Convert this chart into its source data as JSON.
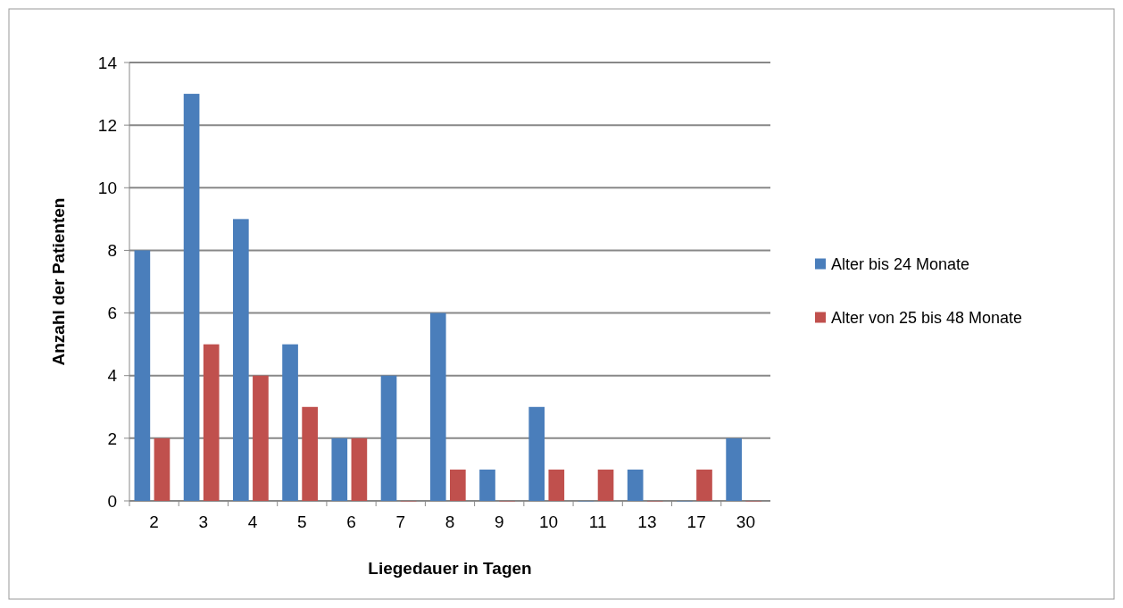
{
  "chart_data": {
    "type": "bar",
    "xlabel": "Liegedauer in Tagen",
    "ylabel": "Anzahl der Patienten",
    "categories": [
      "2",
      "3",
      "4",
      "5",
      "6",
      "7",
      "8",
      "9",
      "10",
      "11",
      "13",
      "17",
      "30"
    ],
    "series": [
      {
        "name": "Alter bis 24 Monate",
        "color": "#4a7ebb",
        "values": [
          8,
          13,
          9,
          5,
          2,
          4,
          6,
          1,
          3,
          0,
          1,
          0,
          2
        ]
      },
      {
        "name": "Alter von 25 bis 48 Monate",
        "color": "#c0504d",
        "values": [
          2,
          5,
          4,
          3,
          2,
          0,
          1,
          0,
          1,
          1,
          0,
          1,
          0
        ]
      }
    ],
    "ylim": [
      0,
      14
    ],
    "yticks": [
      0,
      2,
      4,
      6,
      8,
      10,
      12,
      14
    ],
    "grid": "y",
    "legend": "right"
  }
}
